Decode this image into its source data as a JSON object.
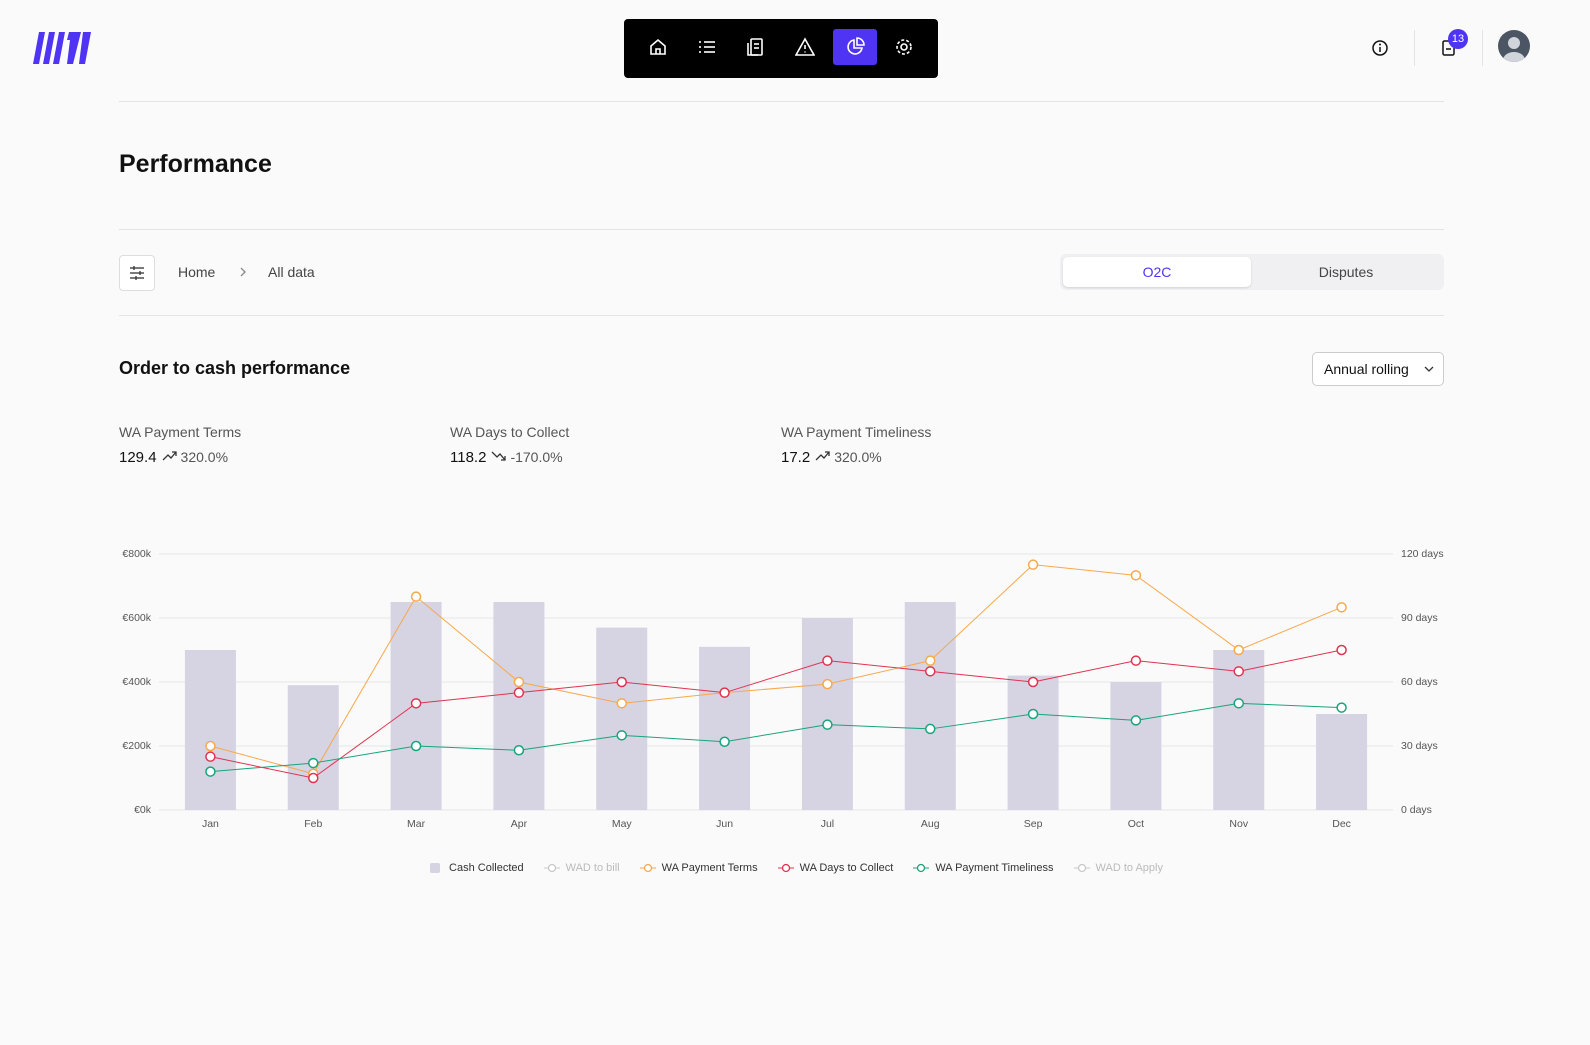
{
  "header": {
    "badge": "13"
  },
  "page_title": "Performance",
  "breadcrumb": [
    "Home",
    "All data"
  ],
  "tabs": [
    "O2C",
    "Disputes"
  ],
  "section_title": "Order to cash performance",
  "dropdown": "Annual rolling",
  "kpis": [
    {
      "label": "WA Payment Terms",
      "value": "129.4",
      "change": "320.0%",
      "trend": "up"
    },
    {
      "label": "WA Days to Collect",
      "value": "118.2",
      "change": "-170.0%",
      "trend": "down"
    },
    {
      "label": "WA Payment Timeliness",
      "value": "17.2",
      "change": "320.0%",
      "trend": "up"
    }
  ],
  "chart_data": {
    "type": "bar-line",
    "categories": [
      "Jan",
      "Feb",
      "Mar",
      "Apr",
      "May",
      "Jun",
      "Jul",
      "Aug",
      "Sep",
      "Oct",
      "Nov",
      "Dec"
    ],
    "series": [
      {
        "name": "Cash Collected",
        "type": "bar",
        "color": "#d6d3e3",
        "values": [
          500000,
          390000,
          650000,
          650000,
          570000,
          510000,
          600000,
          650000,
          420000,
          400000,
          500000,
          300000
        ]
      },
      {
        "name": "WAD to bill",
        "type": "line",
        "color": "#c8c8c8",
        "hidden": true
      },
      {
        "name": "WA Payment Terms",
        "type": "line",
        "axis": "y2",
        "color": "#f7a84a",
        "values": [
          30,
          17,
          100,
          60,
          50,
          55,
          59,
          70,
          115,
          110,
          75,
          95
        ]
      },
      {
        "name": "WA Days to Collect",
        "type": "line",
        "axis": "y2",
        "color": "#e0334f",
        "values": [
          25,
          15,
          50,
          55,
          60,
          55,
          70,
          65,
          60,
          70,
          65,
          75
        ]
      },
      {
        "name": "WA Payment Timeliness",
        "type": "line",
        "axis": "y2",
        "color": "#16a57a",
        "values": [
          18,
          22,
          30,
          28,
          35,
          32,
          40,
          38,
          45,
          42,
          50,
          48
        ]
      },
      {
        "name": "WAD to Apply",
        "type": "line",
        "color": "#c8c8c8",
        "hidden": true
      }
    ],
    "ylim": [
      0,
      800000
    ],
    "yticks": [
      {
        "value": 0,
        "label": "€0k"
      },
      {
        "value": 200000,
        "label": "€200k"
      },
      {
        "value": 400000,
        "label": "€400k"
      },
      {
        "value": 600000,
        "label": "€600k"
      },
      {
        "value": 800000,
        "label": "€800k"
      }
    ],
    "y2lim": [
      0,
      120
    ],
    "y2ticks": [
      {
        "value": 0,
        "label": "0 days"
      },
      {
        "value": 30,
        "label": "30 days"
      },
      {
        "value": 60,
        "label": "60 days"
      },
      {
        "value": 90,
        "label": "90 days"
      },
      {
        "value": 120,
        "label": "120 days"
      }
    ],
    "grid": true,
    "legend": "bottom"
  }
}
